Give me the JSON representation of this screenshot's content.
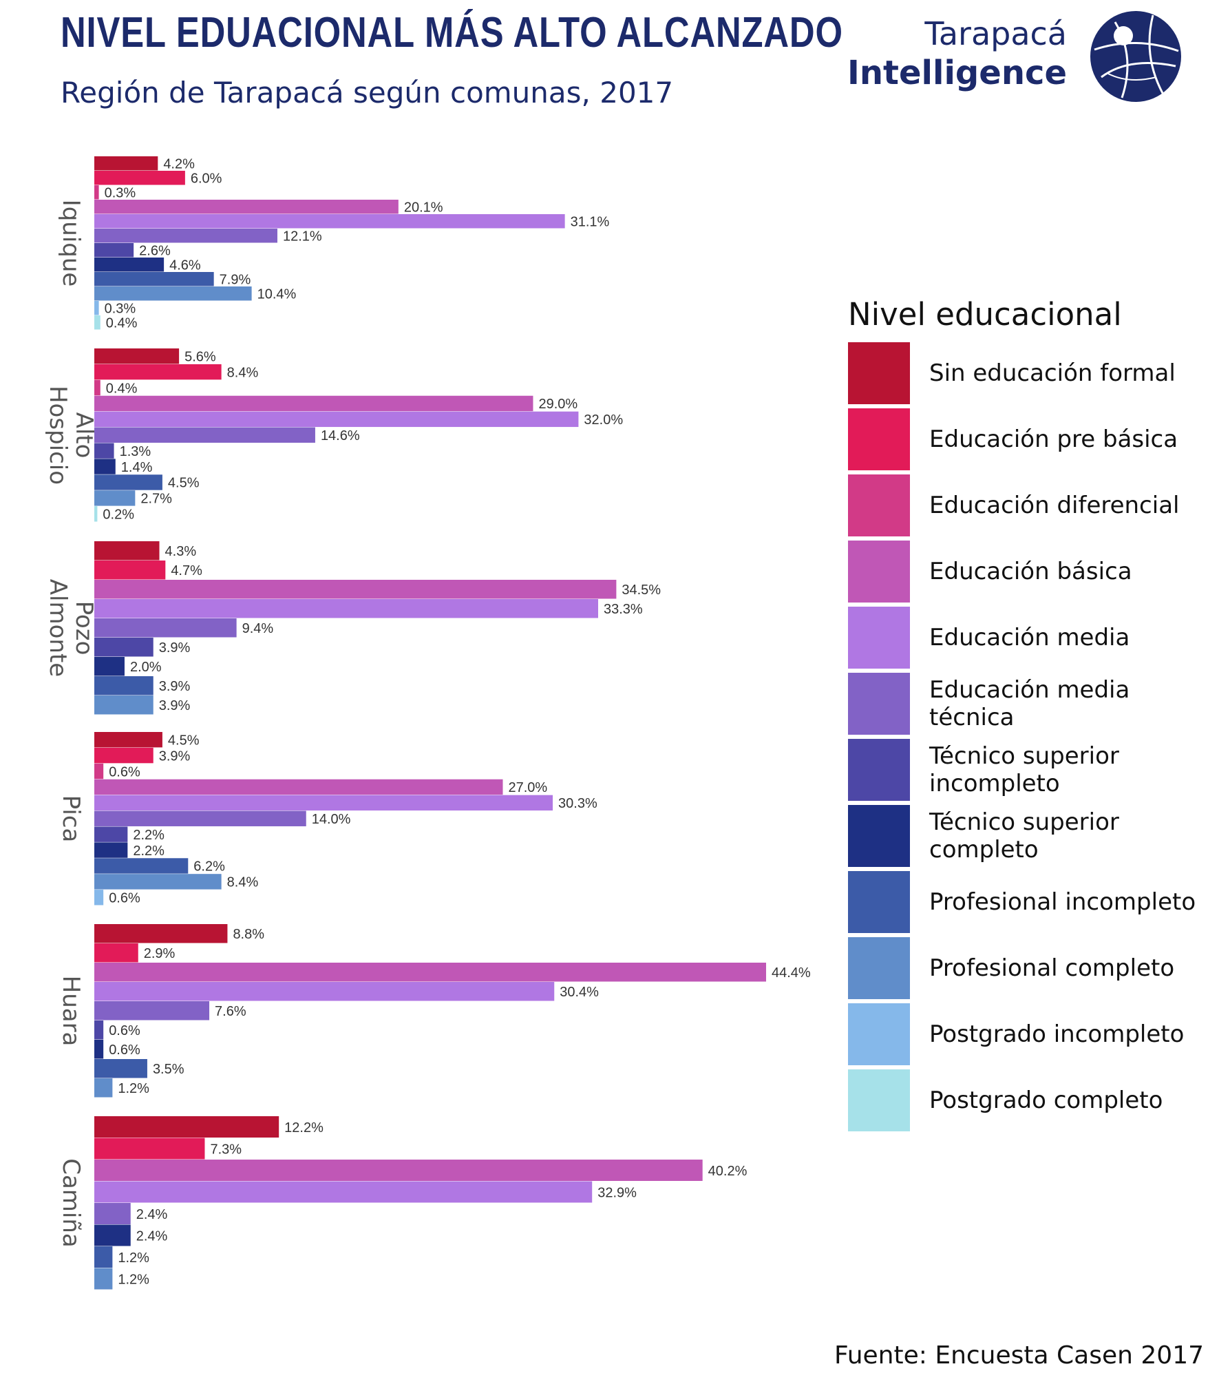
{
  "header": {
    "title": "NIVEL EDUACIONAL MÁS ALTO ALCANZADO",
    "subtitle": "Región de Tarapacá según comunas, 2017"
  },
  "logo": {
    "line1": "Tarapacá",
    "line2": "Intelligence",
    "icon": "globe-icon"
  },
  "legend": {
    "title": "Nivel educacional"
  },
  "source": "Fuente: Encuesta Casen 2017",
  "colors": {
    "title": "#1c2a6b",
    "value_label": "#333333",
    "comuna_label": "#555555"
  },
  "chart_data": {
    "type": "bar",
    "orientation": "horizontal",
    "value_suffix": "%",
    "xlim": [
      0,
      44.4
    ],
    "legend_position": "right",
    "grid": false,
    "levels": [
      {
        "name": "Sin educación formal",
        "color": "#b81433"
      },
      {
        "name": "Educación pre básica",
        "color": "#e21b58"
      },
      {
        "name": "Educación diferencial",
        "color": "#d23a87"
      },
      {
        "name": "Educación básica",
        "color": "#c057b6"
      },
      {
        "name": "Educación media",
        "color": "#b077e3"
      },
      {
        "name": "Educación media técnica",
        "color": "#8262c6"
      },
      {
        "name": "Técnico superior incompleto",
        "color": "#4d47a6"
      },
      {
        "name": "Técnico superior completo",
        "color": "#1e3084"
      },
      {
        "name": "Profesional incompleto",
        "color": "#3c5ba8"
      },
      {
        "name": "Profesional completo",
        "color": "#608dca"
      },
      {
        "name": "Postgrado incompleto",
        "color": "#85b8ea"
      },
      {
        "name": "Postgrado completo",
        "color": "#a6e1e9"
      }
    ],
    "groups": [
      {
        "name": "Iquique",
        "label_lines": [
          "Iquique"
        ],
        "values": [
          4.2,
          6.0,
          0.3,
          20.1,
          31.1,
          12.1,
          2.6,
          4.6,
          7.9,
          10.4,
          0.3,
          0.4
        ]
      },
      {
        "name": "Alto Hospicio",
        "label_lines": [
          "Alto",
          "Hospicio"
        ],
        "values": [
          5.6,
          8.4,
          0.4,
          29.0,
          32.0,
          14.6,
          1.3,
          1.4,
          4.5,
          2.7,
          null,
          0.2
        ]
      },
      {
        "name": "Pozo Almonte",
        "label_lines": [
          "Pozo",
          "Almonte"
        ],
        "values": [
          4.3,
          4.7,
          null,
          34.5,
          33.3,
          9.4,
          3.9,
          2.0,
          3.9,
          3.9,
          null,
          null
        ]
      },
      {
        "name": "Pica",
        "label_lines": [
          "Pica"
        ],
        "values": [
          4.5,
          3.9,
          0.6,
          27.0,
          30.3,
          14.0,
          2.2,
          2.2,
          6.2,
          8.4,
          0.6,
          null
        ]
      },
      {
        "name": "Huara",
        "label_lines": [
          "Huara"
        ],
        "values": [
          8.8,
          2.9,
          null,
          44.4,
          30.4,
          7.6,
          0.6,
          0.6,
          3.5,
          1.2,
          null,
          null
        ]
      },
      {
        "name": "Camiña",
        "label_lines": [
          "Camiña"
        ],
        "values": [
          12.2,
          7.3,
          null,
          40.2,
          32.9,
          2.4,
          null,
          2.4,
          1.2,
          1.2,
          null,
          null
        ]
      }
    ]
  }
}
